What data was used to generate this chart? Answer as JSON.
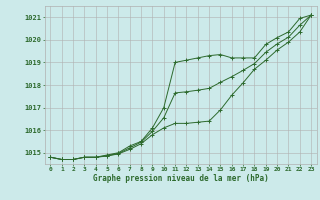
{
  "hours": [
    0,
    1,
    2,
    3,
    4,
    5,
    6,
    7,
    8,
    9,
    10,
    11,
    12,
    13,
    14,
    15,
    16,
    17,
    18,
    19,
    20,
    21,
    22,
    23
  ],
  "line1": [
    1014.8,
    1014.7,
    1014.7,
    1014.8,
    1014.8,
    1014.9,
    1015.0,
    1015.3,
    1015.5,
    1016.1,
    1017.0,
    1019.0,
    1019.1,
    1019.2,
    1019.3,
    1019.35,
    1019.2,
    1019.2,
    1019.2,
    1019.8,
    1020.1,
    1020.35,
    1020.95,
    1021.1
  ],
  "line2": [
    1014.8,
    1014.7,
    1014.7,
    1014.8,
    1014.8,
    1014.85,
    1014.95,
    1015.15,
    1015.4,
    1015.8,
    1016.1,
    1016.3,
    1016.3,
    1016.35,
    1016.4,
    1016.9,
    1017.55,
    1018.1,
    1018.7,
    1019.1,
    1019.55,
    1019.9,
    1020.35,
    1021.1
  ],
  "line3": [
    1014.8,
    1014.7,
    1014.7,
    1014.8,
    1014.8,
    1014.87,
    1014.97,
    1015.22,
    1015.47,
    1015.95,
    1016.55,
    1017.65,
    1017.7,
    1017.77,
    1017.85,
    1018.12,
    1018.37,
    1018.65,
    1018.95,
    1019.45,
    1019.82,
    1020.12,
    1020.65,
    1021.1
  ],
  "line_color": "#2d6a2d",
  "bg_color": "#cceaea",
  "grid_color": "#b0b0b0",
  "ylim": [
    1014.5,
    1021.5
  ],
  "yticks": [
    1015,
    1016,
    1017,
    1018,
    1019,
    1020,
    1021
  ],
  "xlabel": "Graphe pression niveau de la mer (hPa)",
  "label_color": "#2d6a2d",
  "marker": "+",
  "markersize": 3,
  "lw": 0.7
}
